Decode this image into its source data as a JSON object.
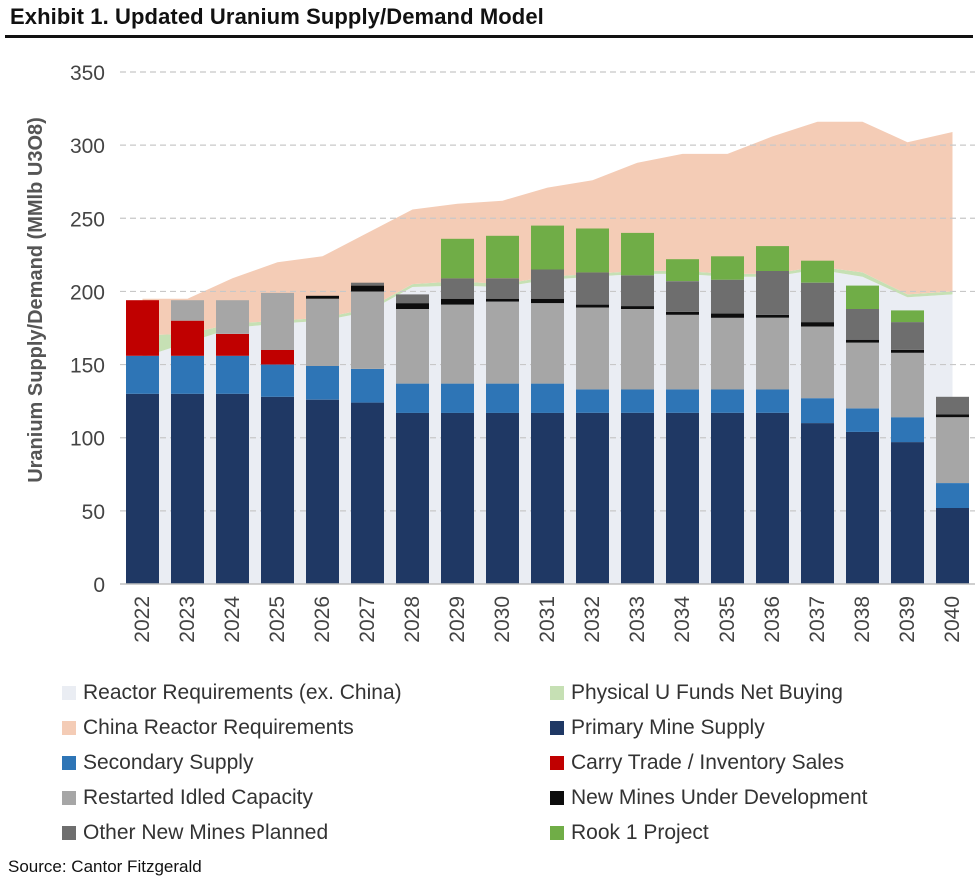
{
  "header": {
    "title": "Exhibit 1. Updated Uranium Supply/Demand Model"
  },
  "source": "Source: Cantor Fitzgerald",
  "chart_data": {
    "type": "bar",
    "title": "Exhibit 1. Updated Uranium Supply/Demand Model",
    "ylabel": "Uranium Supply/Demand (MMlb U3O8)",
    "xlabel": "",
    "ylim": [
      0,
      350
    ],
    "yticks": [
      0,
      50,
      100,
      150,
      200,
      250,
      300,
      350
    ],
    "grid": "horizontal-dashed",
    "legend_position": "bottom",
    "categories": [
      "2022",
      "2023",
      "2024",
      "2025",
      "2026",
      "2027",
      "2028",
      "2029",
      "2030",
      "2031",
      "2032",
      "2033",
      "2034",
      "2035",
      "2036",
      "2037",
      "2038",
      "2039",
      "2040"
    ],
    "areas": [
      {
        "name": "Reactor Requirements (ex. China)",
        "color": "#eaedf3",
        "values": [
          155,
          165,
          175,
          178,
          180,
          186,
          203,
          204,
          203,
          208,
          210,
          212,
          212,
          210,
          210,
          215,
          210,
          196,
          198
        ]
      },
      {
        "name": "Physical U Funds Net Buying",
        "color": "#c6e0b4",
        "values": [
          15,
          6,
          3,
          2,
          2,
          2,
          2,
          3,
          2,
          2,
          2,
          2,
          2,
          2,
          2,
          2,
          3,
          2,
          2
        ]
      },
      {
        "name": "China Reactor Requirements",
        "color": "#f4ccb6",
        "values": [
          25,
          24,
          31,
          40,
          42,
          52,
          51,
          53,
          57,
          61,
          64,
          74,
          80,
          82,
          94,
          99,
          103,
          104,
          109
        ]
      }
    ],
    "series": [
      {
        "name": "Primary Mine Supply",
        "color": "#1f3864",
        "values": [
          130,
          130,
          130,
          128,
          126,
          124,
          117,
          117,
          117,
          117,
          117,
          117,
          117,
          117,
          117,
          110,
          104,
          97,
          52
        ]
      },
      {
        "name": "Secondary Supply",
        "color": "#2e75b6",
        "values": [
          26,
          26,
          26,
          22,
          23,
          23,
          20,
          20,
          20,
          20,
          16,
          16,
          16,
          16,
          16,
          17,
          16,
          17,
          17
        ]
      },
      {
        "name": "Carry Trade / Inventory Sales",
        "color": "#c00000",
        "values": [
          38,
          24,
          15,
          10,
          0,
          0,
          0,
          0,
          0,
          0,
          0,
          0,
          0,
          0,
          0,
          0,
          0,
          0,
          0
        ]
      },
      {
        "name": "Restarted Idled Capacity",
        "color": "#a6a6a6",
        "values": [
          0,
          14,
          23,
          39,
          46,
          53,
          51,
          54,
          56,
          55,
          56,
          55,
          51,
          49,
          49,
          49,
          45,
          44,
          45
        ]
      },
      {
        "name": "New Mines Under Development",
        "color": "#0d0d0d",
        "values": [
          0,
          0,
          0,
          0,
          2,
          4,
          4,
          4,
          2,
          3,
          2,
          2,
          2,
          3,
          2,
          3,
          2,
          2,
          2
        ]
      },
      {
        "name": "Other New Mines Planned",
        "color": "#6e6e6e",
        "values": [
          0,
          0,
          0,
          0,
          0,
          2,
          6,
          14,
          14,
          20,
          22,
          21,
          21,
          23,
          30,
          27,
          21,
          19,
          12
        ]
      },
      {
        "name": "Rook 1 Project",
        "color": "#70ad47",
        "values": [
          0,
          0,
          0,
          0,
          0,
          0,
          0,
          27,
          29,
          30,
          30,
          29,
          15,
          16,
          17,
          15,
          16,
          8,
          0
        ]
      }
    ]
  },
  "legend": [
    {
      "label": "Reactor Requirements (ex. China)",
      "color": "#eaedf3"
    },
    {
      "label": "Physical U Funds Net Buying",
      "color": "#c6e0b4"
    },
    {
      "label": "China Reactor Requirements",
      "color": "#f4ccb6"
    },
    {
      "label": "Primary Mine Supply",
      "color": "#1f3864"
    },
    {
      "label": "Secondary Supply",
      "color": "#2e75b6"
    },
    {
      "label": "Carry Trade / Inventory Sales",
      "color": "#c00000"
    },
    {
      "label": "Restarted Idled Capacity",
      "color": "#a6a6a6"
    },
    {
      "label": "New Mines Under Development",
      "color": "#0d0d0d"
    },
    {
      "label": "Other New Mines Planned",
      "color": "#6e6e6e"
    },
    {
      "label": "Rook 1 Project",
      "color": "#70ad47"
    }
  ]
}
